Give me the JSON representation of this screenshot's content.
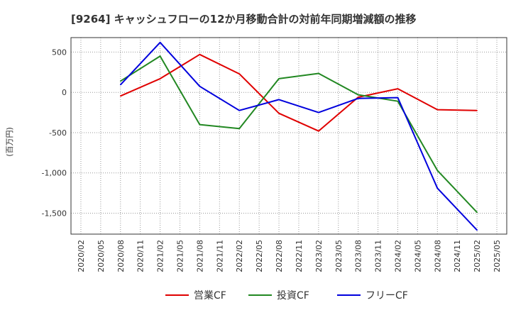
{
  "chart_data": {
    "type": "line",
    "title": "[9264]  キャッシュフローの12か月移動合計の対前年同期増減額の推移",
    "xlabel": "",
    "ylabel": "(百万円)",
    "x_ticks": [
      "2020/02",
      "2020/05",
      "2020/08",
      "2020/11",
      "2021/02",
      "2021/05",
      "2021/08",
      "2021/11",
      "2022/02",
      "2022/05",
      "2022/08",
      "2022/11",
      "2023/02",
      "2023/05",
      "2023/08",
      "2023/11",
      "2024/02",
      "2024/05",
      "2024/08",
      "2024/11",
      "2025/02",
      "2025/05"
    ],
    "y_ticks": [
      500,
      0,
      -500,
      -1000,
      -1500
    ],
    "y_tick_labels": [
      "500",
      "0",
      "-500",
      "-1,000",
      "-1,500"
    ],
    "ylim": [
      -1760,
      680
    ],
    "grid": true,
    "legend_position": "bottom",
    "series": [
      {
        "name": "営業CF",
        "color": "#e00000",
        "x": [
          "2020/08",
          "2021/02",
          "2021/08",
          "2022/02",
          "2022/08",
          "2023/02",
          "2023/08",
          "2024/02",
          "2024/08",
          "2025/02"
        ],
        "values": [
          -45,
          170,
          470,
          230,
          -260,
          -480,
          -60,
          45,
          -215,
          -225
        ]
      },
      {
        "name": "投資CF",
        "color": "#228822",
        "x": [
          "2020/08",
          "2021/02",
          "2021/08",
          "2022/02",
          "2022/08",
          "2023/02",
          "2023/08",
          "2023/11",
          "2024/02",
          "2024/08",
          "2025/02"
        ],
        "values": [
          140,
          450,
          -400,
          -450,
          170,
          235,
          -30,
          -70,
          -110,
          -970,
          -1490
        ]
      },
      {
        "name": "フリーCF",
        "color": "#0000dd",
        "x": [
          "2020/08",
          "2021/02",
          "2021/08",
          "2022/02",
          "2022/08",
          "2023/02",
          "2023/08",
          "2024/02",
          "2024/08",
          "2025/02"
        ],
        "values": [
          95,
          620,
          75,
          -225,
          -90,
          -250,
          -75,
          -65,
          -1190,
          -1710
        ]
      }
    ]
  }
}
